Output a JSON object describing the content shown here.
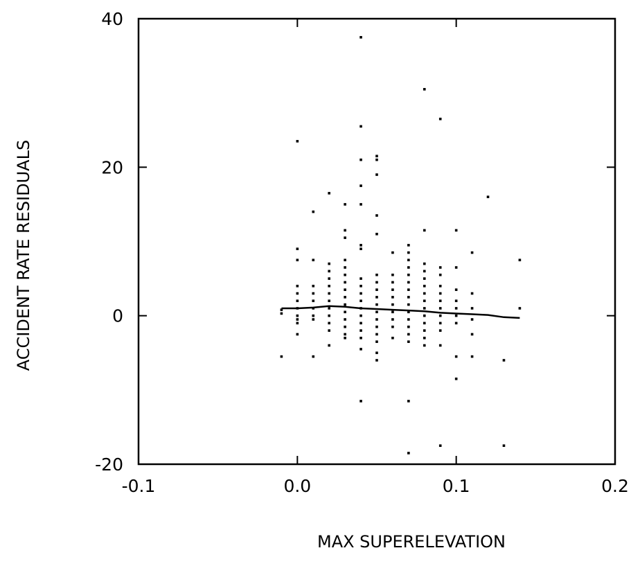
{
  "chart_data": {
    "type": "scatter",
    "title": "",
    "xlabel": "MAX SUPERELEVATION",
    "ylabel": "ACCIDENT RATE RESIDUALS",
    "xlim": [
      -0.1,
      0.2
    ],
    "ylim": [
      -20,
      40
    ],
    "grid": false,
    "legend": "none",
    "x_ticks": [
      -0.1,
      0.0,
      0.1,
      0.2
    ],
    "x_tick_labels": [
      "-0.1",
      "0.0",
      "0.1",
      "0.2"
    ],
    "y_ticks": [
      -20,
      0,
      20,
      40
    ],
    "y_tick_labels": [
      "-20",
      "0",
      "20",
      "40"
    ],
    "colors": {
      "axis": "#000000",
      "points": "#000000",
      "line": "#000000"
    },
    "series": [
      {
        "type": "scatter",
        "points": [
          [
            -0.01,
            -5.5
          ],
          [
            -0.01,
            0.3
          ],
          [
            -0.01,
            0.8
          ],
          [
            0.0,
            23.5
          ],
          [
            0.0,
            9.0
          ],
          [
            0.0,
            7.5
          ],
          [
            0.0,
            4.0
          ],
          [
            0.0,
            3.0
          ],
          [
            0.0,
            2.0
          ],
          [
            0.0,
            1.0
          ],
          [
            0.0,
            0.0
          ],
          [
            0.0,
            -0.5
          ],
          [
            0.0,
            -1.0
          ],
          [
            0.0,
            -2.5
          ],
          [
            0.01,
            14.0
          ],
          [
            0.01,
            7.5
          ],
          [
            0.01,
            4.0
          ],
          [
            0.01,
            3.0
          ],
          [
            0.01,
            2.0
          ],
          [
            0.01,
            1.0
          ],
          [
            0.01,
            0.0
          ],
          [
            0.01,
            -0.5
          ],
          [
            0.01,
            -5.5
          ],
          [
            0.02,
            16.5
          ],
          [
            0.02,
            7.0
          ],
          [
            0.02,
            6.0
          ],
          [
            0.02,
            5.0
          ],
          [
            0.02,
            4.0
          ],
          [
            0.02,
            3.0
          ],
          [
            0.02,
            2.0
          ],
          [
            0.02,
            1.0
          ],
          [
            0.02,
            0.0
          ],
          [
            0.02,
            -1.0
          ],
          [
            0.02,
            -2.0
          ],
          [
            0.02,
            -4.0
          ],
          [
            0.03,
            15.0
          ],
          [
            0.03,
            11.5
          ],
          [
            0.03,
            10.5
          ],
          [
            0.03,
            7.5
          ],
          [
            0.03,
            6.5
          ],
          [
            0.03,
            5.5
          ],
          [
            0.03,
            4.5
          ],
          [
            0.03,
            3.5
          ],
          [
            0.03,
            2.5
          ],
          [
            0.03,
            1.5
          ],
          [
            0.03,
            0.5
          ],
          [
            0.03,
            -0.5
          ],
          [
            0.03,
            -1.5
          ],
          [
            0.03,
            -2.5
          ],
          [
            0.03,
            -3.0
          ],
          [
            0.04,
            37.5
          ],
          [
            0.04,
            25.5
          ],
          [
            0.04,
            21.0
          ],
          [
            0.04,
            17.5
          ],
          [
            0.04,
            15.0
          ],
          [
            0.04,
            9.5
          ],
          [
            0.04,
            9.0
          ],
          [
            0.04,
            5.0
          ],
          [
            0.04,
            4.0
          ],
          [
            0.04,
            3.0
          ],
          [
            0.04,
            2.0
          ],
          [
            0.04,
            1.0
          ],
          [
            0.04,
            0.0
          ],
          [
            0.04,
            -1.0
          ],
          [
            0.04,
            -2.0
          ],
          [
            0.04,
            -3.0
          ],
          [
            0.04,
            -4.5
          ],
          [
            0.04,
            -11.5
          ],
          [
            0.05,
            21.5
          ],
          [
            0.05,
            21.0
          ],
          [
            0.05,
            19.0
          ],
          [
            0.05,
            13.5
          ],
          [
            0.05,
            11.0
          ],
          [
            0.05,
            5.5
          ],
          [
            0.05,
            4.5
          ],
          [
            0.05,
            3.5
          ],
          [
            0.05,
            2.5
          ],
          [
            0.05,
            1.5
          ],
          [
            0.05,
            0.5
          ],
          [
            0.05,
            -0.5
          ],
          [
            0.05,
            -1.5
          ],
          [
            0.05,
            -2.5
          ],
          [
            0.05,
            -3.5
          ],
          [
            0.05,
            -5.0
          ],
          [
            0.05,
            -6.0
          ],
          [
            0.06,
            8.5
          ],
          [
            0.06,
            5.5
          ],
          [
            0.06,
            4.5
          ],
          [
            0.06,
            3.5
          ],
          [
            0.06,
            2.5
          ],
          [
            0.06,
            1.5
          ],
          [
            0.06,
            0.5
          ],
          [
            0.06,
            -0.5
          ],
          [
            0.06,
            -1.5
          ],
          [
            0.06,
            -3.0
          ],
          [
            0.07,
            9.5
          ],
          [
            0.07,
            8.5
          ],
          [
            0.07,
            7.5
          ],
          [
            0.07,
            6.5
          ],
          [
            0.07,
            5.5
          ],
          [
            0.07,
            4.5
          ],
          [
            0.07,
            3.5
          ],
          [
            0.07,
            2.5
          ],
          [
            0.07,
            1.5
          ],
          [
            0.07,
            0.5
          ],
          [
            0.07,
            -0.5
          ],
          [
            0.07,
            -1.5
          ],
          [
            0.07,
            -2.5
          ],
          [
            0.07,
            -3.5
          ],
          [
            0.07,
            -11.5
          ],
          [
            0.07,
            -18.5
          ],
          [
            0.08,
            30.5
          ],
          [
            0.08,
            11.5
          ],
          [
            0.08,
            7.0
          ],
          [
            0.08,
            6.0
          ],
          [
            0.08,
            5.0
          ],
          [
            0.08,
            4.0
          ],
          [
            0.08,
            3.0
          ],
          [
            0.08,
            2.0
          ],
          [
            0.08,
            1.0
          ],
          [
            0.08,
            0.0
          ],
          [
            0.08,
            -1.0
          ],
          [
            0.08,
            -2.0
          ],
          [
            0.08,
            -3.0
          ],
          [
            0.08,
            -4.0
          ],
          [
            0.09,
            26.5
          ],
          [
            0.09,
            6.5
          ],
          [
            0.09,
            5.5
          ],
          [
            0.09,
            4.0
          ],
          [
            0.09,
            3.0
          ],
          [
            0.09,
            2.0
          ],
          [
            0.09,
            1.0
          ],
          [
            0.09,
            0.0
          ],
          [
            0.09,
            -1.0
          ],
          [
            0.09,
            -2.0
          ],
          [
            0.09,
            -4.0
          ],
          [
            0.09,
            -17.5
          ],
          [
            0.1,
            11.5
          ],
          [
            0.1,
            6.5
          ],
          [
            0.1,
            3.5
          ],
          [
            0.1,
            2.0
          ],
          [
            0.1,
            1.0
          ],
          [
            0.1,
            0.0
          ],
          [
            0.1,
            -1.0
          ],
          [
            0.1,
            -5.5
          ],
          [
            0.1,
            -8.5
          ],
          [
            0.11,
            8.5
          ],
          [
            0.11,
            3.0
          ],
          [
            0.11,
            1.0
          ],
          [
            0.11,
            -0.5
          ],
          [
            0.11,
            -2.5
          ],
          [
            0.11,
            -5.5
          ],
          [
            0.12,
            16.0
          ],
          [
            0.13,
            -6.0
          ],
          [
            0.13,
            -17.5
          ],
          [
            0.14,
            7.5
          ],
          [
            0.14,
            1.0
          ]
        ]
      },
      {
        "type": "line",
        "x": [
          -0.01,
          0.0,
          0.01,
          0.02,
          0.03,
          0.04,
          0.05,
          0.06,
          0.07,
          0.08,
          0.09,
          0.1,
          0.11,
          0.12,
          0.13,
          0.14
        ],
        "y": [
          1.0,
          1.0,
          1.1,
          1.3,
          1.2,
          1.0,
          0.9,
          0.8,
          0.7,
          0.6,
          0.4,
          0.3,
          0.2,
          0.1,
          -0.2,
          -0.3
        ]
      }
    ]
  }
}
